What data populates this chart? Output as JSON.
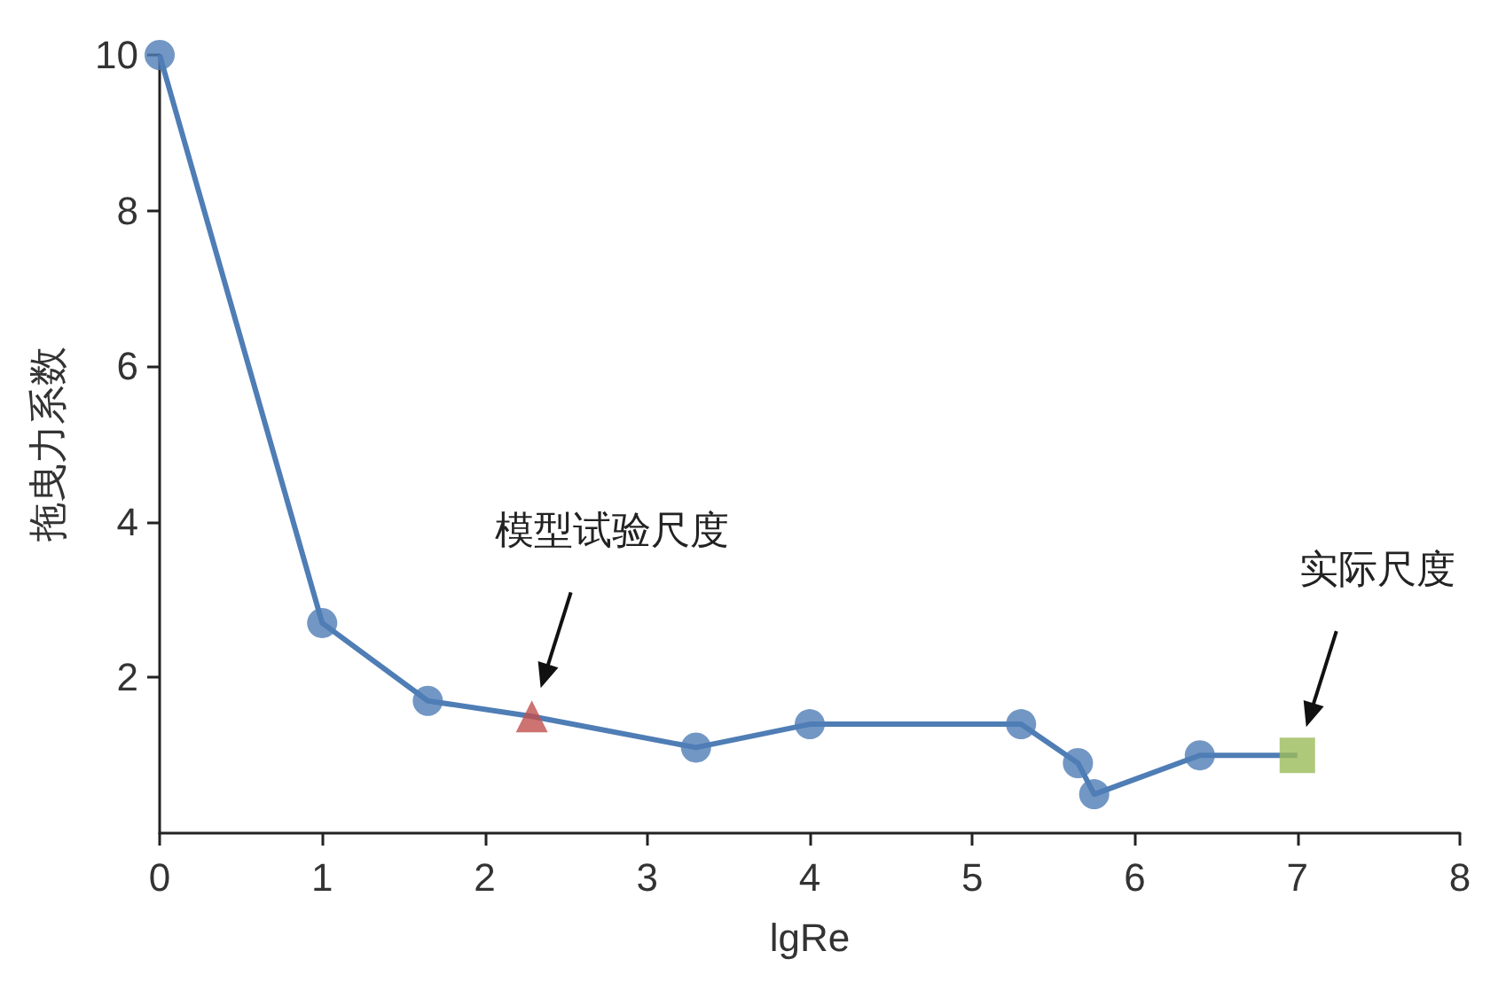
{
  "chart_data": {
    "type": "line",
    "xlabel": "lgRe",
    "ylabel": "拖曳力系数",
    "xlim": [
      0,
      8
    ],
    "xticks": [
      0,
      1,
      2,
      3,
      4,
      5,
      6,
      7,
      8
    ],
    "ylim": [
      0,
      10
    ],
    "yticks": [
      2,
      4,
      6,
      8,
      10
    ],
    "grid": false,
    "series": [
      {
        "type": "line",
        "color": "#4f7db5",
        "marker": "none",
        "x": [
          0,
          1,
          1.65,
          2.29,
          3.3,
          4,
          5.3,
          5.65,
          5.75,
          6.4,
          7
        ],
        "values": [
          10,
          2.7,
          1.7,
          1.5,
          1.1,
          1.4,
          1.4,
          0.9,
          0.5,
          1,
          1
        ]
      },
      {
        "type": "scatter",
        "color": "#4f7db5",
        "marker": "circle",
        "x": [
          0,
          1,
          1.65,
          3.3,
          4,
          5.3,
          5.65,
          5.75,
          6.4
        ],
        "values": [
          10,
          2.7,
          1.7,
          1.1,
          1.4,
          1.4,
          0.9,
          0.5,
          1
        ]
      },
      {
        "type": "scatter",
        "color": "#c0504d",
        "marker": "triangle",
        "x": [
          2.29
        ],
        "values": [
          1.5
        ]
      },
      {
        "type": "scatter",
        "color": "#9bbb59",
        "marker": "square",
        "x": [
          7
        ],
        "values": [
          1
        ]
      }
    ],
    "annotations": [
      "模型试验尺度",
      "实际尺度"
    ]
  }
}
